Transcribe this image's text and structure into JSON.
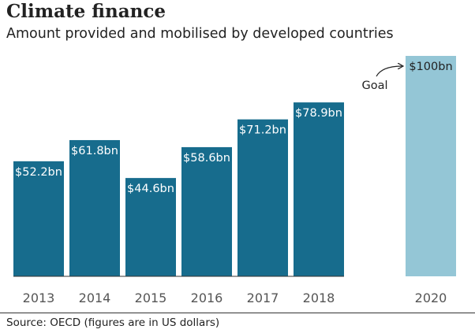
{
  "header": {
    "title": "Climate finance",
    "subtitle": "Amount provided and mobilised by developed countries"
  },
  "footer": {
    "source": "Source: OECD (figures are in US dollars)"
  },
  "colors": {
    "bar": "#176c8d",
    "target_bar": "#94c6d6",
    "label_on_bar": "#ffffff",
    "label_dark": "#222222",
    "axis_text": "#555555",
    "baseline": "#333333"
  },
  "chart_data": {
    "type": "bar",
    "title": "Climate finance",
    "subtitle": "Amount provided and mobilised by developed countries",
    "xlabel": "",
    "ylabel": "",
    "ylim": [
      0,
      100
    ],
    "grid": false,
    "categories": [
      "2013",
      "2014",
      "2015",
      "2016",
      "2017",
      "2018",
      "2020"
    ],
    "values": [
      52.2,
      61.8,
      44.6,
      58.6,
      71.2,
      78.9,
      100
    ],
    "data_labels": [
      "$52.2bn",
      "$61.8bn",
      "$44.6bn",
      "$58.6bn",
      "$71.2bn",
      "$78.9bn",
      "$100bn"
    ],
    "annotations": [
      {
        "text": "Goal",
        "target_category": "2020"
      }
    ]
  }
}
